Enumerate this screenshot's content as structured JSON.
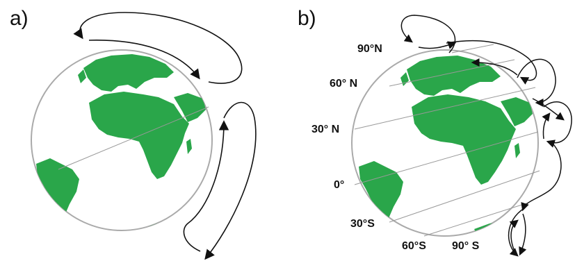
{
  "panels": [
    {
      "id": "a",
      "label": "a)"
    },
    {
      "id": "b",
      "label": "b)"
    }
  ],
  "latitudes": [
    {
      "id": "90n",
      "text": "90°N"
    },
    {
      "id": "60n",
      "text": "60° N"
    },
    {
      "id": "30n",
      "text": "30° N"
    },
    {
      "id": "eq",
      "text": "0°"
    },
    {
      "id": "30s",
      "text": "30°S"
    },
    {
      "id": "60s",
      "text": "60°S"
    },
    {
      "id": "90s",
      "text": "90° S"
    }
  ],
  "colors": {
    "land": "#2aa64a",
    "globe_outline": "#aaaaaa",
    "arrow": "#111111",
    "latitude_line": "#999999"
  }
}
